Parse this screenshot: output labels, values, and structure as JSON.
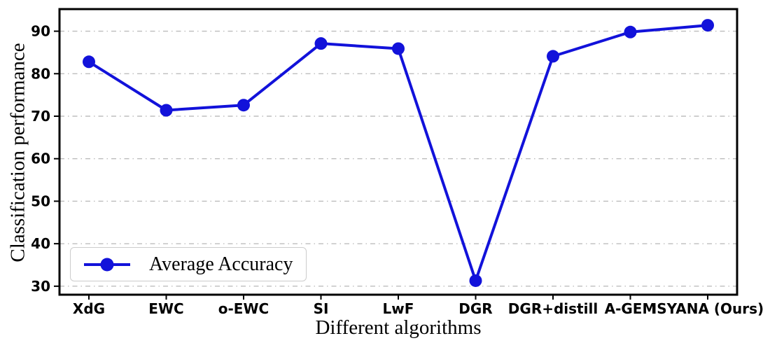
{
  "chart_data": {
    "type": "line",
    "title": "",
    "categories": [
      "XdG",
      "EWC",
      "o-EWC",
      "SI",
      "LwF",
      "DGR",
      "DGR+distill",
      "A-GEM",
      "ISYANA (Ours)"
    ],
    "series": [
      {
        "name": "Average Accuracy",
        "values": [
          82.8,
          71.4,
          72.6,
          87.1,
          85.9,
          31.3,
          84.1,
          89.8,
          91.4
        ],
        "color": "#1212da",
        "marker": "circle"
      }
    ],
    "xlabel": "Different algorithms",
    "ylabel": "Classification performance",
    "yticks": [
      30,
      40,
      50,
      60,
      70,
      80,
      90
    ],
    "ylim": [
      28.0,
      95.2
    ],
    "grid": "horizontal dash-dot",
    "grid_color": "#bdbdbd",
    "axis_color": "#000000",
    "background": "#ffffff",
    "legend": {
      "label": "Average Accuracy",
      "position": "lower-left"
    }
  }
}
